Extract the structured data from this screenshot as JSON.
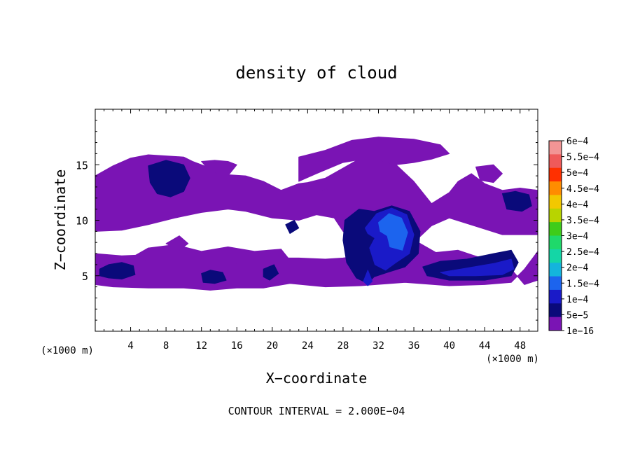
{
  "chart_data": {
    "type": "heatmap",
    "title": "density of cloud",
    "xlabel": "X−coordinate",
    "ylabel": "Z−coordinate",
    "x_unit_label": "(×1000 m)",
    "z_unit_label": "(×1000 m)",
    "footer": "CONTOUR INTERVAL = 2.000E−04",
    "xlim": [
      0,
      50
    ],
    "ylim": [
      0,
      20
    ],
    "x_ticks": [
      4,
      8,
      12,
      16,
      20,
      24,
      28,
      32,
      36,
      40,
      44,
      48
    ],
    "y_ticks": [
      5,
      10,
      15
    ],
    "x_tick_labels": [
      "4",
      "8",
      "12",
      "16",
      "20",
      "24",
      "28",
      "32",
      "36",
      "40",
      "44",
      "48"
    ],
    "y_tick_labels": [
      "5",
      "10",
      "15"
    ],
    "colorbar": {
      "labels": [
        "6e−4",
        "5.5e−4",
        "5e−4",
        "4.5e−4",
        "4e−4",
        "3.5e−4",
        "3e−4",
        "2.5e−4",
        "2e−4",
        "1.5e−4",
        "1e−4",
        "5e−5",
        "1e−16"
      ],
      "colors": [
        "#f29595",
        "#ef5a5a",
        "#ff3000",
        "#ff8c00",
        "#f2c800",
        "#b8d400",
        "#3ecc1a",
        "#1fd96a",
        "#14d6a6",
        "#14b4dc",
        "#1c64ee",
        "#1a1ac8",
        "#0a0a7a",
        "#7a14b4"
      ]
    },
    "regions": [
      {
        "level": 0,
        "points": [
          [
            0,
            4.2
          ],
          [
            2,
            4.0
          ],
          [
            6,
            3.9
          ],
          [
            10,
            3.9
          ],
          [
            13,
            3.7
          ],
          [
            16,
            3.9
          ],
          [
            19,
            3.9
          ],
          [
            22,
            4.3
          ],
          [
            26,
            4.0
          ],
          [
            30,
            4.1
          ],
          [
            35,
            4.4
          ],
          [
            40,
            4.1
          ],
          [
            44,
            4.2
          ],
          [
            47,
            4.4
          ],
          [
            48.5,
            5.6
          ],
          [
            50,
            7.2
          ],
          [
            50,
            4.6
          ],
          [
            48.5,
            4.2
          ],
          [
            47,
            5.6
          ],
          [
            44,
            6.5
          ],
          [
            41,
            7.3
          ],
          [
            38.5,
            7.1
          ],
          [
            36.5,
            8.0
          ],
          [
            35,
            7.8
          ],
          [
            34,
            6.8
          ],
          [
            33,
            6.0
          ],
          [
            31.5,
            6.5
          ],
          [
            30,
            6.8
          ],
          [
            28,
            6.6
          ],
          [
            26,
            6.5
          ],
          [
            23,
            6.6
          ],
          [
            20,
            6.6
          ],
          [
            18,
            6.5
          ],
          [
            15,
            6.3
          ],
          [
            12,
            6.5
          ],
          [
            9,
            6.6
          ],
          [
            6,
            6.9
          ],
          [
            3,
            6.8
          ],
          [
            0,
            7.0
          ]
        ]
      },
      {
        "level": 0,
        "points": [
          [
            0,
            9.0
          ],
          [
            3,
            9.1
          ],
          [
            6,
            9.6
          ],
          [
            9,
            10.2
          ],
          [
            12,
            10.7
          ],
          [
            15,
            11.0
          ],
          [
            17,
            10.8
          ],
          [
            20,
            10.2
          ],
          [
            23,
            10.0
          ],
          [
            25,
            10.5
          ],
          [
            27,
            10.2
          ],
          [
            28,
            9.0
          ],
          [
            30,
            8.0
          ],
          [
            33,
            7.8
          ],
          [
            36,
            8.0
          ],
          [
            38,
            9.5
          ],
          [
            40,
            10.2
          ],
          [
            44,
            9.2
          ],
          [
            46,
            8.7
          ],
          [
            50,
            8.7
          ],
          [
            50,
            12.7
          ],
          [
            48,
            12.9
          ],
          [
            46,
            12.7
          ],
          [
            44,
            13.3
          ],
          [
            42.5,
            14.2
          ],
          [
            41,
            13.5
          ],
          [
            40,
            12.5
          ],
          [
            38,
            11.5
          ],
          [
            36,
            13.5
          ],
          [
            34,
            15.0
          ],
          [
            32,
            15.8
          ],
          [
            30,
            15.6
          ],
          [
            28,
            14.7
          ],
          [
            26,
            13.8
          ],
          [
            24,
            13.4
          ],
          [
            23,
            13.3
          ],
          [
            21,
            12.7
          ],
          [
            19,
            13.5
          ],
          [
            17,
            14.0
          ],
          [
            15,
            14.1
          ],
          [
            13,
            14.7
          ],
          [
            11,
            15.3
          ],
          [
            10,
            15.7
          ],
          [
            8,
            15.8
          ],
          [
            6,
            15.9
          ],
          [
            4,
            15.6
          ],
          [
            2,
            14.9
          ],
          [
            0,
            14.0
          ]
        ]
      },
      {
        "level": 0,
        "points": [
          [
            12,
            15.3
          ],
          [
            13.5,
            15.4
          ],
          [
            15,
            15.3
          ],
          [
            16,
            15.0
          ],
          [
            15,
            14.0
          ],
          [
            13,
            14.4
          ]
        ]
      },
      {
        "level": 0,
        "points": [
          [
            23,
            15.7
          ],
          [
            26,
            16.3
          ],
          [
            29,
            17.2
          ],
          [
            32,
            17.5
          ],
          [
            36,
            17.3
          ],
          [
            39,
            16.8
          ],
          [
            40,
            16.0
          ],
          [
            38,
            15.5
          ],
          [
            36,
            15.2
          ],
          [
            34,
            15.0
          ],
          [
            31,
            15.6
          ],
          [
            28,
            15.2
          ],
          [
            25,
            14.2
          ],
          [
            23,
            13.5
          ]
        ]
      },
      {
        "level": 0,
        "points": [
          [
            43,
            14.8
          ],
          [
            45,
            15.0
          ],
          [
            46,
            14.2
          ],
          [
            45,
            13.4
          ],
          [
            43.5,
            13.6
          ]
        ]
      },
      {
        "level": 0,
        "points": [
          [
            24.5,
            12.4
          ],
          [
            27,
            13.0
          ],
          [
            28.5,
            12.0
          ],
          [
            27,
            10.8
          ],
          [
            25,
            11.2
          ]
        ]
      },
      {
        "level": 0,
        "points": [
          [
            4,
            6.6
          ],
          [
            8,
            6.2
          ],
          [
            12,
            6.3
          ],
          [
            15,
            6.0
          ],
          [
            19,
            6.5
          ],
          [
            22,
            6.4
          ],
          [
            21,
            7.4
          ],
          [
            18,
            7.2
          ],
          [
            15,
            7.6
          ],
          [
            12,
            7.2
          ],
          [
            9,
            7.8
          ],
          [
            6,
            7.5
          ]
        ]
      },
      {
        "level": 0,
        "points": [
          [
            8,
            7.9
          ],
          [
            9.5,
            8.6
          ],
          [
            10.5,
            7.9
          ],
          [
            9.5,
            7.3
          ]
        ]
      },
      {
        "level": 1,
        "points": [
          [
            0.5,
            5.6
          ],
          [
            1.5,
            6.0
          ],
          [
            3.0,
            6.2
          ],
          [
            4.3,
            5.9
          ],
          [
            4.5,
            5.1
          ],
          [
            3.0,
            4.7
          ],
          [
            1.5,
            4.8
          ],
          [
            0.5,
            5.0
          ]
        ]
      },
      {
        "level": 1,
        "points": [
          [
            12.0,
            5.2
          ],
          [
            13.0,
            5.5
          ],
          [
            14.4,
            5.3
          ],
          [
            14.8,
            4.6
          ],
          [
            13.5,
            4.3
          ],
          [
            12.2,
            4.4
          ]
        ]
      },
      {
        "level": 1,
        "points": [
          [
            19.0,
            5.6
          ],
          [
            20.2,
            6.0
          ],
          [
            20.7,
            5.2
          ],
          [
            19.7,
            4.6
          ],
          [
            19.0,
            4.9
          ]
        ]
      },
      {
        "level": 1,
        "points": [
          [
            6.0,
            14.9
          ],
          [
            8.0,
            15.4
          ],
          [
            10.0,
            15.0
          ],
          [
            10.7,
            13.8
          ],
          [
            10.0,
            12.6
          ],
          [
            8.5,
            12.1
          ],
          [
            7.0,
            12.4
          ],
          [
            6.2,
            13.4
          ]
        ]
      },
      {
        "level": 1,
        "points": [
          [
            46.0,
            12.4
          ],
          [
            47.5,
            12.6
          ],
          [
            49.0,
            12.3
          ],
          [
            49.3,
            11.3
          ],
          [
            48.2,
            10.8
          ],
          [
            46.5,
            11.0
          ]
        ]
      },
      {
        "level": 1,
        "points": [
          [
            21.5,
            9.6
          ],
          [
            22.5,
            10.0
          ],
          [
            23.0,
            9.3
          ],
          [
            22.0,
            8.8
          ]
        ]
      },
      {
        "level": 1,
        "points": [
          [
            28.2,
            10.0
          ],
          [
            29.8,
            11.0
          ],
          [
            31.5,
            10.8
          ],
          [
            33.5,
            11.3
          ],
          [
            35.5,
            10.8
          ],
          [
            36.7,
            9.0
          ],
          [
            36.5,
            7.0
          ],
          [
            35.0,
            5.8
          ],
          [
            33.0,
            5.3
          ],
          [
            31.5,
            4.9
          ],
          [
            30.8,
            4.3
          ],
          [
            29.5,
            4.8
          ],
          [
            28.4,
            6.2
          ],
          [
            28.0,
            8.2
          ]
        ]
      },
      {
        "level": 1,
        "points": [
          [
            37.0,
            5.8
          ],
          [
            39.0,
            6.3
          ],
          [
            42.0,
            6.5
          ],
          [
            45.0,
            7.0
          ],
          [
            47.0,
            7.3
          ],
          [
            47.8,
            6.2
          ],
          [
            47.0,
            5.0
          ],
          [
            44.0,
            4.6
          ],
          [
            40.0,
            4.6
          ],
          [
            37.5,
            5.0
          ]
        ]
      },
      {
        "level": 2,
        "points": [
          [
            30.5,
            9.3
          ],
          [
            31.8,
            10.6
          ],
          [
            33.5,
            11.1
          ],
          [
            35.2,
            10.5
          ],
          [
            36.0,
            8.7
          ],
          [
            35.5,
            7.0
          ],
          [
            34.0,
            6.2
          ],
          [
            32.8,
            5.5
          ],
          [
            31.6,
            6.0
          ],
          [
            31.0,
            7.5
          ],
          [
            31.6,
            8.4
          ],
          [
            30.8,
            8.8
          ]
        ]
      },
      {
        "level": 2,
        "points": [
          [
            30.3,
            4.5
          ],
          [
            30.8,
            5.5
          ],
          [
            31.3,
            4.5
          ],
          [
            30.8,
            4.1
          ]
        ]
      },
      {
        "level": 2,
        "points": [
          [
            39.0,
            5.3
          ],
          [
            42.0,
            5.7
          ],
          [
            45.0,
            6.1
          ],
          [
            47.0,
            6.5
          ],
          [
            47.3,
            5.6
          ],
          [
            46.0,
            5.1
          ],
          [
            43.0,
            5.0
          ],
          [
            40.0,
            5.0
          ]
        ]
      },
      {
        "level": 3,
        "points": [
          [
            32.0,
            9.8
          ],
          [
            33.2,
            10.6
          ],
          [
            34.6,
            10.2
          ],
          [
            35.3,
            8.9
          ],
          [
            34.7,
            7.3
          ],
          [
            33.3,
            7.6
          ],
          [
            33.0,
            8.6
          ],
          [
            32.2,
            9.0
          ]
        ]
      }
    ]
  }
}
